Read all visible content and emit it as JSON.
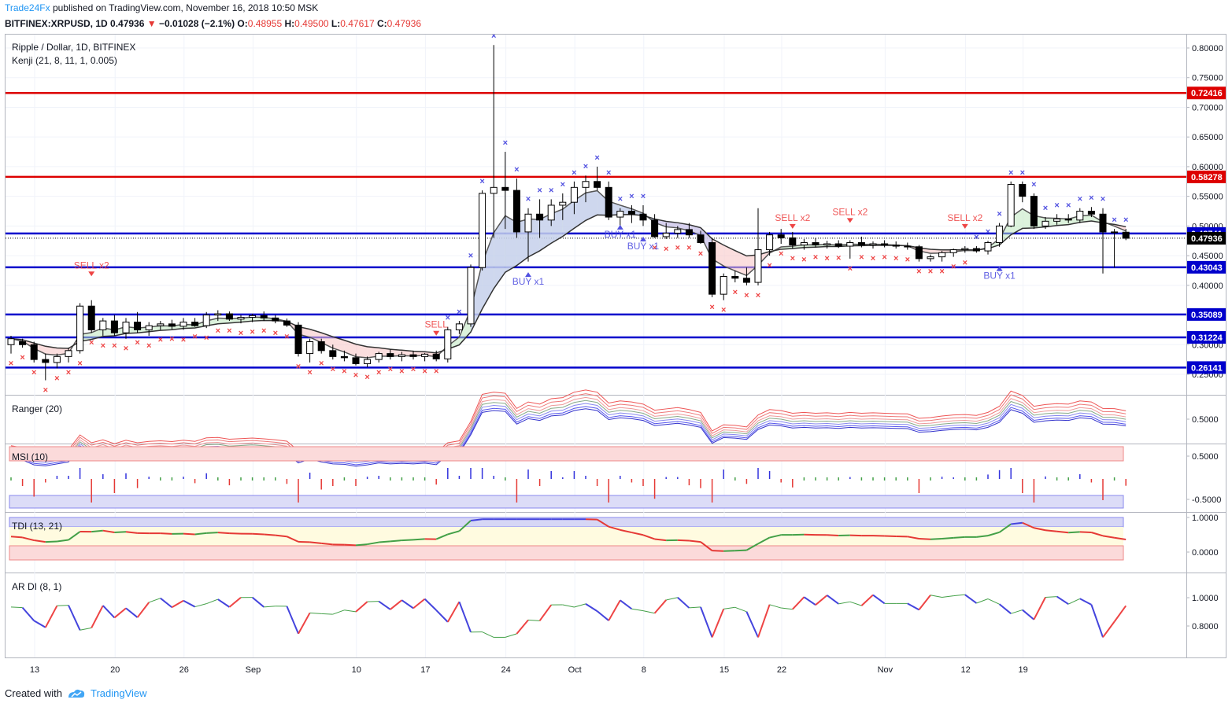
{
  "header": {
    "author": "Trade24Fx",
    "published": "published on TradingView.com, November 16, 2018 10:50 MSK",
    "symbol": "BITFINEX:XRPUSD, 1D",
    "last": "0.47936",
    "change": "−0.01028 (−2.1%)",
    "o_label": "O:",
    "o": "0.48955",
    "h_label": "H:",
    "h": "0.49500",
    "l_label": "L:",
    "l": "0.47617",
    "c_label": "C:",
    "c": "0.47936"
  },
  "pane_labels": {
    "main_title": "Ripple / Dollar, 1D, BITFINEX",
    "main_indicator": "Kenji (21, 8, 11, 1, 0.005)",
    "ranger": "Ranger (20)",
    "msi": "MSI (10)",
    "tdi": "TDI (13, 21)",
    "ardi": "AR DI (8, 1)"
  },
  "footer": {
    "created_with": "Created with",
    "brand": "TradingView"
  },
  "colors": {
    "bull": "#ffffff",
    "bear": "#000000",
    "level": "#0000cc",
    "resistance": "#dd0000",
    "buy": "#5050e0",
    "sell": "#ee4444"
  },
  "chart_data": {
    "type": "candlestick",
    "title": "Ripple / Dollar, 1D, BITFINEX",
    "x_ticks": [
      "13",
      "20",
      "26",
      "Sep",
      "10",
      "17",
      "24",
      "Oct",
      "8",
      "15",
      "22",
      "Nov",
      "12",
      "19"
    ],
    "y_ticks": [
      "0.80000",
      "0.75000",
      "0.70000",
      "0.65000",
      "0.60000",
      "0.55000",
      "0.50000",
      "0.45000",
      "0.40000",
      "0.35000",
      "0.30000",
      "0.25000"
    ],
    "ylim": [
      0.235,
      0.82
    ],
    "levels": [
      {
        "value": 0.72416,
        "label": "0.72416",
        "color": "#dd0000"
      },
      {
        "value": 0.58278,
        "label": "0.58278",
        "color": "#dd0000"
      },
      {
        "value": 0.48741,
        "label": "0.48741",
        "color": "#0000cc"
      },
      {
        "value": 0.43043,
        "label": "0.43043",
        "color": "#0000cc"
      },
      {
        "value": 0.35089,
        "label": "0.35089",
        "color": "#0000cc"
      },
      {
        "value": 0.31224,
        "label": "0.31224",
        "color": "#0000cc"
      },
      {
        "value": 0.26141,
        "label": "0.26141",
        "color": "#0000cc"
      }
    ],
    "current_price": {
      "value": 0.47936,
      "label": "0.47936"
    },
    "signals": [
      {
        "label": "SELL x2",
        "idx": 7,
        "price": 0.41,
        "dir": "sell"
      },
      {
        "label": "SELL",
        "idx": 37,
        "price": 0.31,
        "dir": "sell"
      },
      {
        "label": "BUY x1",
        "idx": 45,
        "price": 0.43,
        "dir": "buy"
      },
      {
        "label": "BUY x1",
        "idx": 53,
        "price": 0.51,
        "dir": "buy"
      },
      {
        "label": "BUY x1",
        "idx": 55,
        "price": 0.49,
        "dir": "buy"
      },
      {
        "label": "SELL x2",
        "idx": 68,
        "price": 0.49,
        "dir": "sell"
      },
      {
        "label": "SELL x2",
        "idx": 73,
        "price": 0.5,
        "dir": "sell"
      },
      {
        "label": "SELL x2",
        "idx": 83,
        "price": 0.49,
        "dir": "sell"
      },
      {
        "label": "BUY x1",
        "idx": 86,
        "price": 0.44,
        "dir": "buy"
      }
    ],
    "candles": [
      [
        0.3,
        0.315,
        0.285,
        0.31
      ],
      [
        0.305,
        0.31,
        0.295,
        0.3
      ],
      [
        0.3,
        0.305,
        0.27,
        0.275
      ],
      [
        0.275,
        0.285,
        0.24,
        0.27
      ],
      [
        0.27,
        0.285,
        0.26,
        0.28
      ],
      [
        0.28,
        0.295,
        0.27,
        0.29
      ],
      [
        0.29,
        0.37,
        0.285,
        0.365
      ],
      [
        0.365,
        0.375,
        0.32,
        0.325
      ],
      [
        0.325,
        0.345,
        0.315,
        0.34
      ],
      [
        0.34,
        0.35,
        0.315,
        0.32
      ],
      [
        0.32,
        0.345,
        0.31,
        0.338
      ],
      [
        0.338,
        0.355,
        0.32,
        0.325
      ],
      [
        0.325,
        0.338,
        0.315,
        0.332
      ],
      [
        0.332,
        0.34,
        0.325,
        0.335
      ],
      [
        0.335,
        0.342,
        0.326,
        0.331
      ],
      [
        0.331,
        0.345,
        0.325,
        0.338
      ],
      [
        0.338,
        0.345,
        0.33,
        0.332
      ],
      [
        0.332,
        0.355,
        0.328,
        0.35
      ],
      [
        0.35,
        0.358,
        0.34,
        0.352
      ],
      [
        0.352,
        0.356,
        0.34,
        0.343
      ],
      [
        0.343,
        0.35,
        0.336,
        0.346
      ],
      [
        0.346,
        0.352,
        0.338,
        0.349
      ],
      [
        0.349,
        0.356,
        0.34,
        0.345
      ],
      [
        0.345,
        0.35,
        0.336,
        0.34
      ],
      [
        0.34,
        0.344,
        0.33,
        0.333
      ],
      [
        0.333,
        0.338,
        0.28,
        0.285
      ],
      [
        0.285,
        0.31,
        0.27,
        0.305
      ],
      [
        0.305,
        0.31,
        0.285,
        0.29
      ],
      [
        0.29,
        0.3,
        0.275,
        0.28
      ],
      [
        0.28,
        0.29,
        0.272,
        0.278
      ],
      [
        0.278,
        0.285,
        0.265,
        0.268
      ],
      [
        0.268,
        0.28,
        0.262,
        0.275
      ],
      [
        0.275,
        0.288,
        0.27,
        0.285
      ],
      [
        0.285,
        0.292,
        0.275,
        0.28
      ],
      [
        0.28,
        0.288,
        0.272,
        0.283
      ],
      [
        0.283,
        0.29,
        0.275,
        0.28
      ],
      [
        0.28,
        0.286,
        0.272,
        0.284
      ],
      [
        0.284,
        0.29,
        0.272,
        0.276
      ],
      [
        0.276,
        0.33,
        0.27,
        0.325
      ],
      [
        0.325,
        0.34,
        0.318,
        0.335
      ],
      [
        0.335,
        0.435,
        0.33,
        0.43
      ],
      [
        0.43,
        0.56,
        0.425,
        0.555
      ],
      [
        0.555,
        0.805,
        0.48,
        0.565
      ],
      [
        0.565,
        0.625,
        0.495,
        0.56
      ],
      [
        0.56,
        0.58,
        0.48,
        0.49
      ],
      [
        0.49,
        0.53,
        0.44,
        0.52
      ],
      [
        0.52,
        0.545,
        0.48,
        0.51
      ],
      [
        0.51,
        0.545,
        0.5,
        0.535
      ],
      [
        0.535,
        0.555,
        0.51,
        0.54
      ],
      [
        0.54,
        0.575,
        0.52,
        0.565
      ],
      [
        0.565,
        0.585,
        0.54,
        0.575
      ],
      [
        0.575,
        0.6,
        0.56,
        0.565
      ],
      [
        0.565,
        0.575,
        0.51,
        0.515
      ],
      [
        0.515,
        0.53,
        0.5,
        0.525
      ],
      [
        0.525,
        0.535,
        0.505,
        0.52
      ],
      [
        0.52,
        0.535,
        0.5,
        0.51
      ],
      [
        0.51,
        0.52,
        0.48,
        0.482
      ],
      [
        0.482,
        0.505,
        0.478,
        0.488
      ],
      [
        0.488,
        0.5,
        0.48,
        0.494
      ],
      [
        0.494,
        0.505,
        0.48,
        0.485
      ],
      [
        0.485,
        0.492,
        0.47,
        0.472
      ],
      [
        0.472,
        0.48,
        0.38,
        0.385
      ],
      [
        0.385,
        0.42,
        0.375,
        0.415
      ],
      [
        0.415,
        0.425,
        0.405,
        0.412
      ],
      [
        0.412,
        0.43,
        0.4,
        0.405
      ],
      [
        0.405,
        0.53,
        0.4,
        0.46
      ],
      [
        0.46,
        0.49,
        0.45,
        0.485
      ],
      [
        0.485,
        0.495,
        0.47,
        0.48
      ],
      [
        0.48,
        0.49,
        0.462,
        0.468
      ],
      [
        0.468,
        0.478,
        0.46,
        0.472
      ],
      [
        0.472,
        0.48,
        0.464,
        0.468
      ],
      [
        0.468,
        0.475,
        0.462,
        0.47
      ],
      [
        0.47,
        0.476,
        0.463,
        0.466
      ],
      [
        0.466,
        0.476,
        0.445,
        0.472
      ],
      [
        0.472,
        0.482,
        0.464,
        0.468
      ],
      [
        0.468,
        0.474,
        0.462,
        0.47
      ],
      [
        0.47,
        0.476,
        0.464,
        0.468
      ],
      [
        0.468,
        0.474,
        0.462,
        0.466
      ],
      [
        0.466,
        0.472,
        0.46,
        0.465
      ],
      [
        0.465,
        0.468,
        0.44,
        0.445
      ],
      [
        0.445,
        0.452,
        0.44,
        0.448
      ],
      [
        0.448,
        0.458,
        0.44,
        0.455
      ],
      [
        0.455,
        0.462,
        0.448,
        0.46
      ],
      [
        0.46,
        0.466,
        0.455,
        0.462
      ],
      [
        0.462,
        0.466,
        0.455,
        0.458
      ],
      [
        0.458,
        0.475,
        0.452,
        0.472
      ],
      [
        0.472,
        0.505,
        0.465,
        0.5
      ],
      [
        0.5,
        0.575,
        0.498,
        0.57
      ],
      [
        0.57,
        0.575,
        0.54,
        0.55
      ],
      [
        0.55,
        0.555,
        0.495,
        0.5
      ],
      [
        0.5,
        0.515,
        0.495,
        0.508
      ],
      [
        0.508,
        0.52,
        0.502,
        0.512
      ],
      [
        0.512,
        0.52,
        0.505,
        0.51
      ],
      [
        0.51,
        0.53,
        0.505,
        0.525
      ],
      [
        0.525,
        0.532,
        0.515,
        0.52
      ],
      [
        0.52,
        0.53,
        0.42,
        0.49
      ],
      [
        0.49,
        0.495,
        0.43,
        0.489
      ],
      [
        0.48955,
        0.495,
        0.47617,
        0.47936
      ]
    ]
  }
}
